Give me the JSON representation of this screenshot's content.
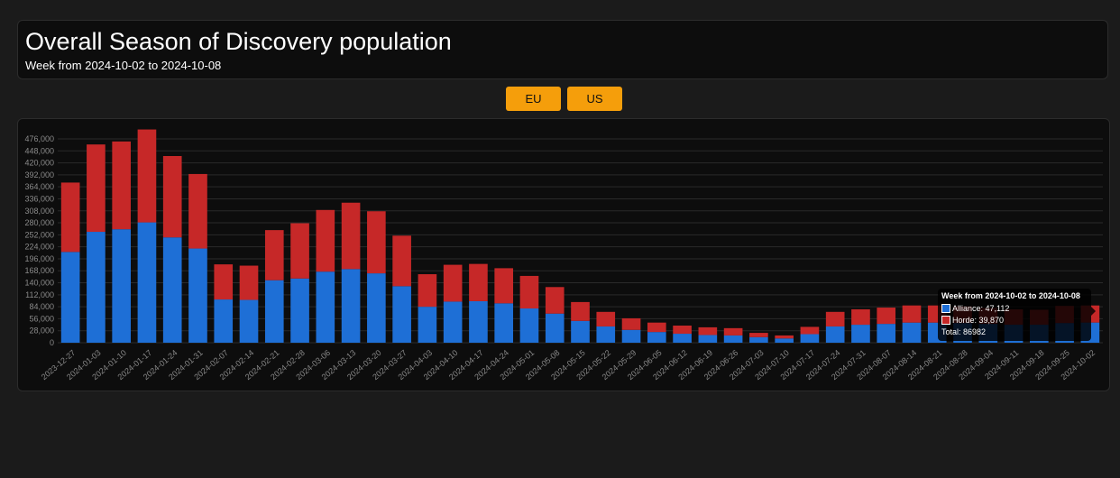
{
  "header": {
    "title": "Overall Season of Discovery population",
    "subtitle": "Week from 2024-10-02 to 2024-10-08"
  },
  "regions": [
    {
      "label": "EU"
    },
    {
      "label": "US"
    }
  ],
  "tooltip": {
    "title": "Week from 2024-10-02 to 2024-10-08",
    "alliance": "Alliance: 47,112",
    "horde": "Horde: 39,870",
    "total": "Total: 86982"
  },
  "colors": {
    "alliance": "#1e6fd6",
    "horde": "#c62828",
    "grid": "#2a2a2a",
    "tick_label": "#8a8a8a"
  },
  "chart_data": {
    "type": "bar",
    "stacked": true,
    "categories": [
      "2023-12-27",
      "2024-01-03",
      "2024-01-10",
      "2024-01-17",
      "2024-01-24",
      "2024-01-31",
      "2024-02-07",
      "2024-02-14",
      "2024-02-21",
      "2024-02-28",
      "2024-03-06",
      "2024-03-13",
      "2024-03-20",
      "2024-03-27",
      "2024-04-03",
      "2024-04-10",
      "2024-04-17",
      "2024-04-24",
      "2024-05-01",
      "2024-05-08",
      "2024-05-15",
      "2024-05-22",
      "2024-05-29",
      "2024-06-05",
      "2024-06-12",
      "2024-06-19",
      "2024-06-26",
      "2024-07-03",
      "2024-07-10",
      "2024-07-17",
      "2024-07-24",
      "2024-07-31",
      "2024-08-07",
      "2024-08-14",
      "2024-08-21",
      "2024-08-28",
      "2024-09-04",
      "2024-09-11",
      "2024-09-18",
      "2024-09-25",
      "2024-10-02"
    ],
    "series": [
      {
        "name": "Alliance",
        "values": [
          212000,
          259000,
          265000,
          281000,
          246000,
          220000,
          101000,
          100000,
          146000,
          150000,
          166000,
          172000,
          162000,
          132000,
          84000,
          96000,
          97000,
          92000,
          80000,
          68000,
          51000,
          38000,
          30000,
          25000,
          21000,
          18000,
          17000,
          13000,
          10000,
          20000,
          38000,
          42000,
          44000,
          47000,
          47000,
          46000,
          44000,
          42000,
          42000,
          46000,
          47112
        ]
      },
      {
        "name": "Horde",
        "values": [
          162000,
          204000,
          205000,
          217000,
          190000,
          174000,
          82000,
          80000,
          117000,
          129000,
          144000,
          155000,
          145000,
          118000,
          76000,
          86000,
          87000,
          82000,
          76000,
          62000,
          44000,
          34000,
          27000,
          22000,
          19000,
          18000,
          17000,
          10000,
          7000,
          17000,
          34000,
          36000,
          38000,
          40000,
          40000,
          39000,
          37000,
          36000,
          35000,
          40000,
          39870
        ]
      }
    ],
    "y_ticks": [
      0,
      28000,
      56000,
      84000,
      112000,
      140000,
      168000,
      196000,
      224000,
      252000,
      280000,
      308000,
      336000,
      364000,
      392000,
      420000,
      448000,
      476000
    ],
    "ylim": [
      0,
      476000
    ],
    "grid": true,
    "legend": "none"
  }
}
